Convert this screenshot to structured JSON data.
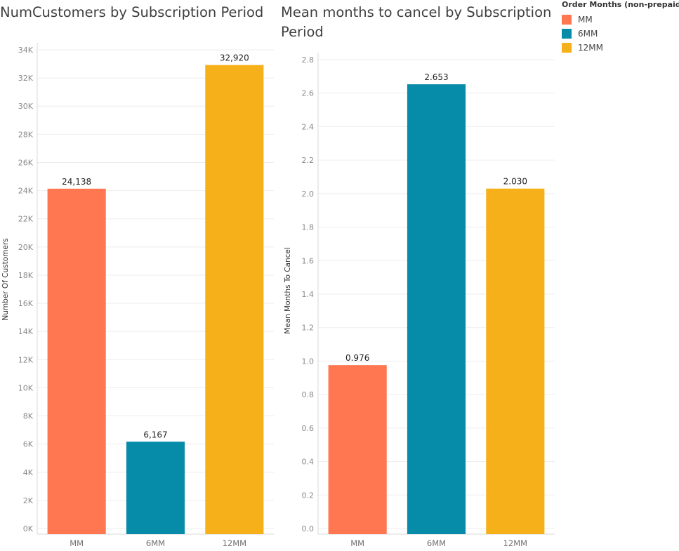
{
  "chart_data": [
    {
      "type": "bar",
      "title": "NumCustomers by Subscription Period",
      "ylabel": "Number Of Customers",
      "xlabel": "",
      "categories": [
        "MM",
        "6MM",
        "12MM"
      ],
      "values": [
        24138,
        6167,
        32920
      ],
      "data_labels": [
        "24,138",
        "6,167",
        "32,920"
      ],
      "ylim": [
        0,
        34000
      ],
      "yticks": [
        0,
        2000,
        4000,
        6000,
        8000,
        10000,
        12000,
        14000,
        16000,
        18000,
        20000,
        22000,
        24000,
        26000,
        28000,
        30000,
        32000,
        34000
      ],
      "ytick_labels": [
        "0K",
        "2K",
        "4K",
        "6K",
        "8K",
        "10K",
        "12K",
        "14K",
        "16K",
        "18K",
        "20K",
        "22K",
        "24K",
        "26K",
        "28K",
        "30K",
        "32K",
        "34K"
      ],
      "grid": true
    },
    {
      "type": "bar",
      "title": "Mean months to cancel by Subscription Period",
      "ylabel": "Mean Months To Cancel",
      "xlabel": "",
      "categories": [
        "MM",
        "6MM",
        "12MM"
      ],
      "values": [
        0.976,
        2.653,
        2.03
      ],
      "data_labels": [
        "0.976",
        "2.653",
        "2.030"
      ],
      "ylim": [
        0,
        2.8
      ],
      "yticks": [
        0,
        0.2,
        0.4,
        0.6,
        0.8,
        1.0,
        1.2,
        1.4,
        1.6,
        1.8,
        2.0,
        2.2,
        2.4,
        2.6,
        2.8
      ],
      "ytick_labels": [
        "0.0",
        "0.2",
        "0.4",
        "0.6",
        "0.8",
        "1.0",
        "1.2",
        "1.4",
        "1.6",
        "1.8",
        "2.0",
        "2.2",
        "2.4",
        "2.6",
        "2.8"
      ],
      "grid": true
    }
  ],
  "legend": {
    "title": "Order Months (non-prepaid)",
    "items": [
      {
        "label": "MM",
        "color": "#ff7751"
      },
      {
        "label": "6MM",
        "color": "#068ca8"
      },
      {
        "label": "12MM",
        "color": "#f6b11a"
      }
    ]
  }
}
